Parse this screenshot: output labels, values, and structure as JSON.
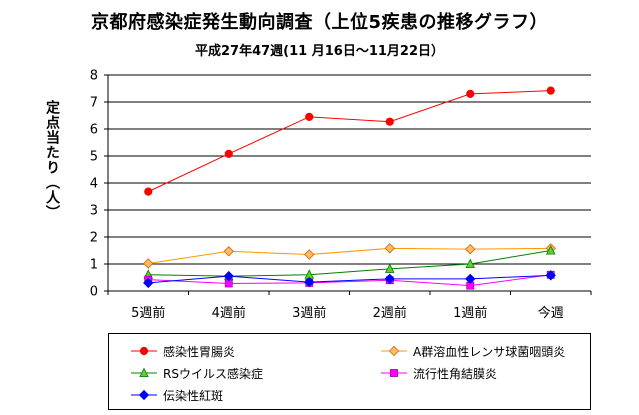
{
  "chart_data": {
    "type": "line",
    "title": "京都府感染症発生動向調査（上位5疾患の推移グラフ）",
    "subtitle": "平成27年47週(11 月16日～11月22日）",
    "ylabel": "定点当たり（人）",
    "xlabel": "",
    "ylim": [
      0,
      8
    ],
    "yticks": [
      "0",
      "1",
      "2",
      "3",
      "4",
      "5",
      "6",
      "7",
      "8"
    ],
    "grid": true,
    "legend_position": "bottom",
    "categories": [
      "5週前",
      "4週前",
      "3週前",
      "2週前",
      "1週前",
      "今週"
    ],
    "series": [
      {
        "name": "感染性胃腸炎",
        "color": "#ff0000",
        "marker": "circle",
        "values": [
          3.68,
          5.08,
          6.45,
          6.27,
          7.3,
          7.42
        ]
      },
      {
        "name": "A群溶血性レンサ球菌咽頭炎",
        "color": "#ff9900",
        "marker": "diamond",
        "values": [
          1.02,
          1.47,
          1.35,
          1.58,
          1.55,
          1.58
        ]
      },
      {
        "name": "RSウイルス感染症",
        "color": "#008000",
        "marker": "triangle",
        "values": [
          0.6,
          0.55,
          0.6,
          0.82,
          1.0,
          1.5
        ]
      },
      {
        "name": "流行性角結膜炎",
        "color": "#ff00ff",
        "marker": "square",
        "values": [
          0.42,
          0.28,
          0.3,
          0.4,
          0.2,
          0.6
        ]
      },
      {
        "name": "伝染性紅斑",
        "color": "#0000ff",
        "marker": "diamond",
        "values": [
          0.3,
          0.55,
          0.33,
          0.45,
          0.45,
          0.58
        ]
      }
    ]
  }
}
